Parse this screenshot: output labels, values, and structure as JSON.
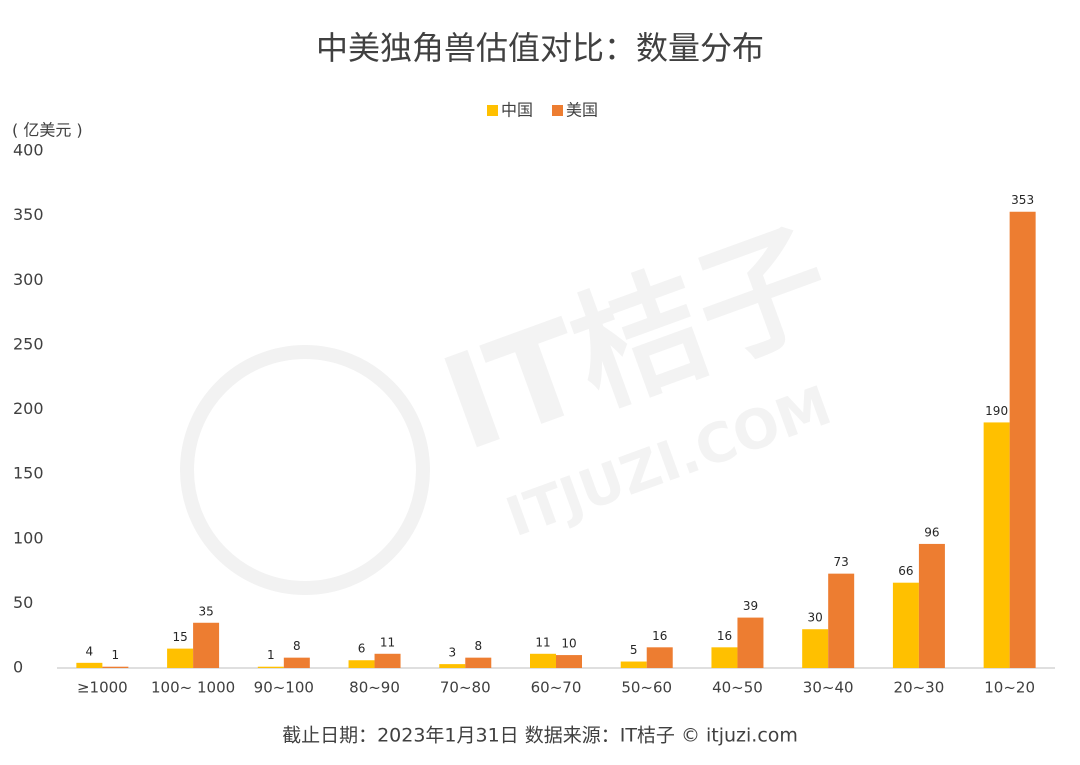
{
  "chart_data": {
    "type": "bar",
    "title": "中美独角兽估值对比：数量分布",
    "y_label": "( 亿美元 )",
    "footer": "截止日期：2023年1月31日    数据来源：IT桔子 © itjuzi.com",
    "watermark": [
      "IT桔子",
      "ITJUZI.COM"
    ],
    "categories": [
      "≥1000",
      "100~ 1000",
      "90~100",
      "80~90",
      "70~80",
      "60~70",
      "50~60",
      "40~50",
      "30~40",
      "20~30",
      "10~20"
    ],
    "series": [
      {
        "name": "中国",
        "color": "#FFC000",
        "values": [
          4,
          15,
          1,
          6,
          3,
          11,
          5,
          16,
          30,
          66,
          190
        ]
      },
      {
        "name": "美国",
        "color": "#ED7D31",
        "values": [
          1,
          35,
          8,
          11,
          8,
          10,
          16,
          39,
          73,
          96,
          353
        ]
      }
    ],
    "ylim": [
      0,
      400
    ],
    "yticks": [
      0,
      50,
      100,
      150,
      200,
      250,
      300,
      350,
      400
    ],
    "grid": false
  }
}
